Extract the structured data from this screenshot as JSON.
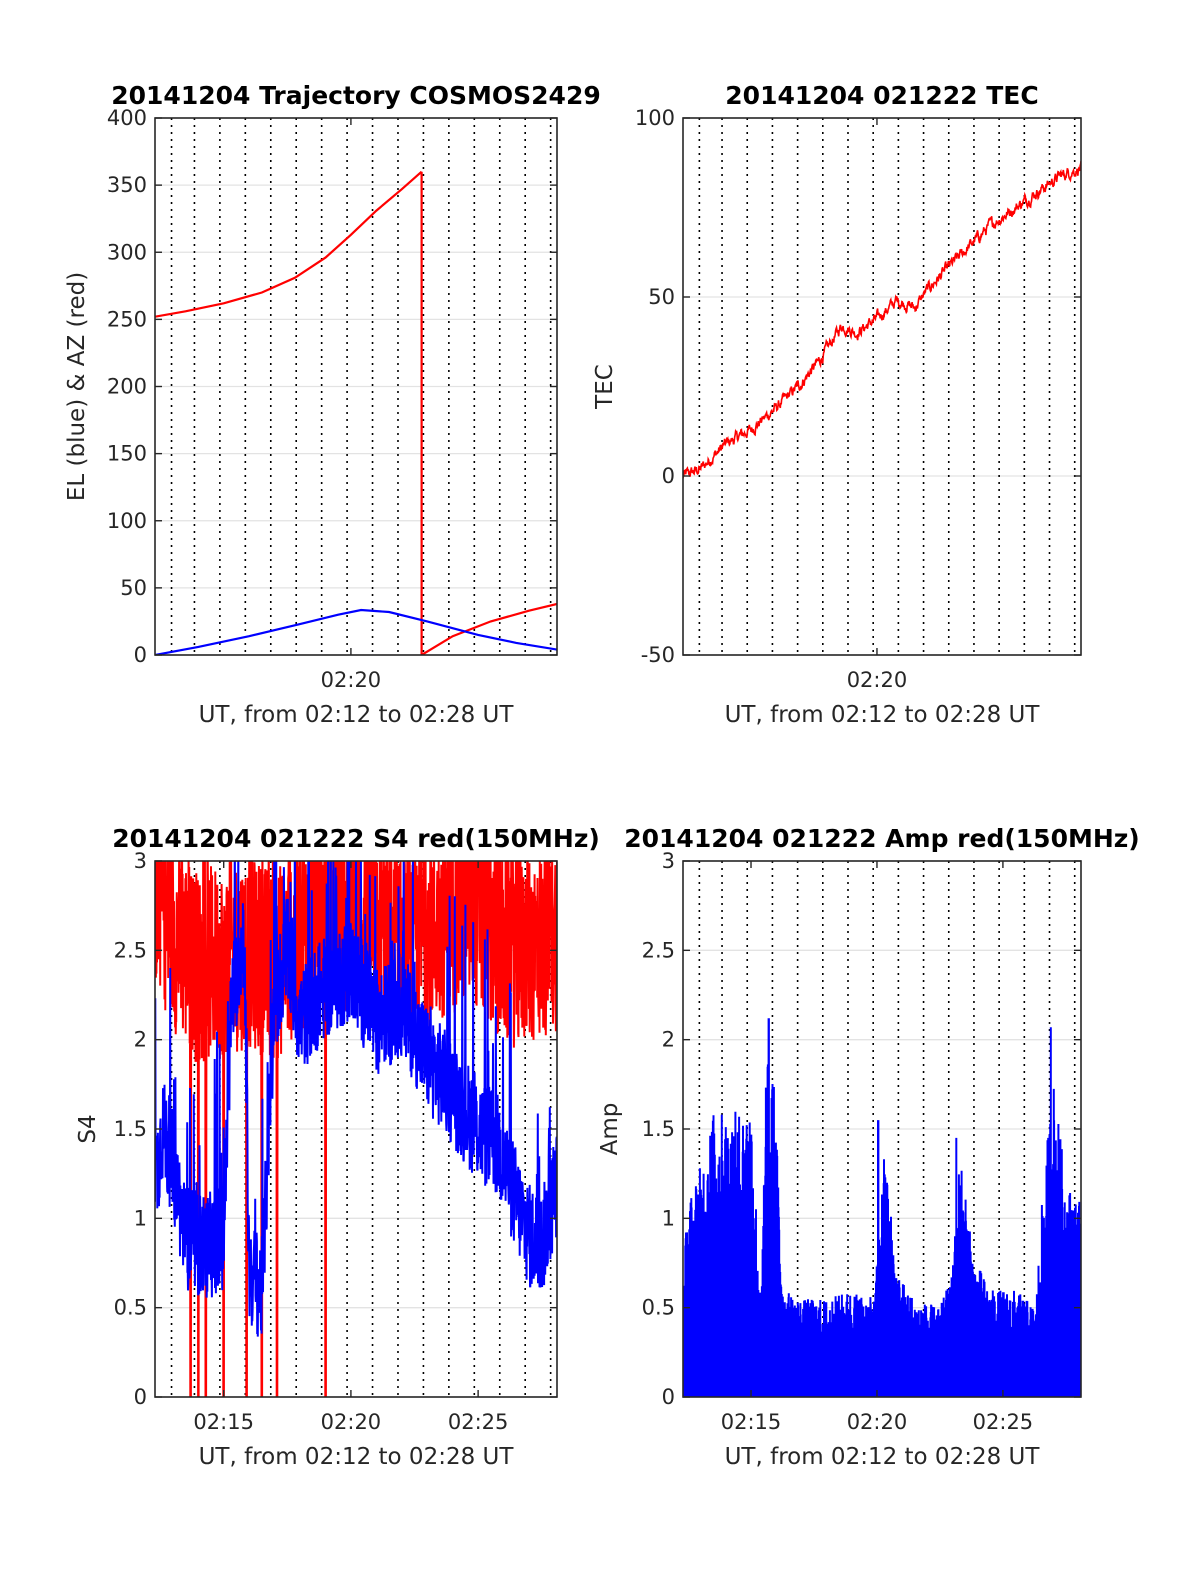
{
  "chart_data": [
    {
      "type": "line",
      "title": "20141204 Trajectory COSMOS2429",
      "xlabel": "UT, from 02:12 to 02:28 UT",
      "ylabel": "EL (blue) & AZ (red)",
      "xlim": [
        12.3,
        28.1
      ],
      "ylim": [
        0,
        400
      ],
      "yticks": [
        "0",
        "50",
        "100",
        "150",
        "200",
        "250",
        "300",
        "350",
        "400"
      ],
      "xticks": [
        {
          "value": 20,
          "label": "02:20"
        }
      ],
      "grid": true,
      "series": [
        {
          "name": "AZ",
          "color": "#ff0000",
          "segments": [
            {
              "x": [
                12.3,
                13.5,
                15.0,
                16.5,
                17.8,
                19.0,
                20.0,
                21.0,
                22.0,
                22.78
              ],
              "y": [
                252,
                256,
                262,
                270,
                281,
                296,
                313,
                331,
                347,
                360
              ]
            },
            {
              "x": [
                22.78,
                22.78
              ],
              "y": [
                360,
                0
              ]
            },
            {
              "x": [
                22.78,
                24.0,
                25.5,
                27.0,
                28.1
              ],
              "y": [
                0,
                14,
                25,
                33,
                38
              ]
            }
          ]
        },
        {
          "name": "EL",
          "color": "#0000ff",
          "segments": [
            {
              "x": [
                12.3,
                14.0,
                16.0,
                18.0,
                19.5,
                20.4,
                21.5,
                23.0,
                25.0,
                26.5,
                28.1
              ],
              "y": [
                0,
                6,
                14,
                23,
                30,
                33.5,
                32,
                25,
                15,
                9,
                4
              ]
            }
          ]
        }
      ]
    },
    {
      "type": "line",
      "title": "20141204 021222 TEC",
      "xlabel": "UT, from 02:12 to 02:28 UT",
      "ylabel": "TEC",
      "xlim": [
        12.3,
        28.1
      ],
      "ylim": [
        -50,
        100
      ],
      "yticks": [
        "-50",
        "0",
        "50",
        "100"
      ],
      "xticks": [
        {
          "value": 20,
          "label": "02:20"
        }
      ],
      "grid": true,
      "noise": 1.2,
      "series": [
        {
          "name": "TEC",
          "color": "#ff0000",
          "x": [
            12.3,
            13.0,
            14.0,
            15.0,
            16.0,
            17.0,
            17.8,
            18.6,
            19.2,
            20.0,
            20.8,
            21.5,
            22.0,
            22.8,
            23.5,
            24.5,
            25.5,
            26.5,
            27.3,
            28.1
          ],
          "y": [
            0,
            2,
            9,
            13,
            19,
            26,
            33,
            42,
            40,
            44,
            49,
            47,
            52,
            58,
            63,
            70,
            75,
            80,
            84,
            86
          ]
        }
      ]
    },
    {
      "type": "line",
      "title": "20141204 021222 S4 red(150MHz)",
      "xlabel": "UT, from 02:12 to 02:28 UT",
      "ylabel": "S4",
      "xlim": [
        12.3,
        28.1
      ],
      "ylim": [
        0,
        3
      ],
      "yticks": [
        "0",
        "0.5",
        "1",
        "1.5",
        "2",
        "2.5",
        "3"
      ],
      "xticks": [
        {
          "value": 15,
          "label": "02:15"
        },
        {
          "value": 20,
          "label": "02:20"
        },
        {
          "value": 25,
          "label": "02:25"
        }
      ],
      "grid": true,
      "series": [
        {
          "name": "S4 red",
          "color": "#ff0000",
          "x": [
            12.3,
            13.0,
            14.0,
            15.0,
            16.0,
            17.0,
            18.0,
            19.0,
            20.0,
            21.0,
            22.0,
            23.0,
            24.0,
            25.0,
            26.0,
            27.0,
            28.1
          ],
          "y": [
            2.85,
            2.6,
            2.4,
            2.45,
            2.5,
            2.4,
            2.6,
            2.7,
            2.7,
            2.6,
            2.5,
            2.6,
            2.7,
            2.7,
            2.5,
            2.5,
            2.6
          ],
          "spread": 0.55,
          "dropouts": [
            13.7,
            14.0,
            14.3,
            15.0,
            15.9,
            16.5,
            17.1,
            19.0
          ]
        },
        {
          "name": "S4 blue",
          "color": "#0000ff",
          "x": [
            12.3,
            12.6,
            13.0,
            13.5,
            14.0,
            14.5,
            15.0,
            15.3,
            15.8,
            16.0,
            16.5,
            17.0,
            17.5,
            18.0,
            19.0,
            20.0,
            21.0,
            22.0,
            23.0,
            24.0,
            25.0,
            25.8,
            26.5,
            27.0,
            27.5,
            28.1
          ],
          "y": [
            1.2,
            1.5,
            1.3,
            0.9,
            0.85,
            0.85,
            0.9,
            2.2,
            2.6,
            0.7,
            0.6,
            2.2,
            2.5,
            2.1,
            2.3,
            2.4,
            2.1,
            2.2,
            1.9,
            1.7,
            1.5,
            1.4,
            1.1,
            0.9,
            0.85,
            1.2
          ],
          "spread": 0.3
        }
      ]
    },
    {
      "type": "bar",
      "title": "20141204 021222 Amp red(150MHz)",
      "xlabel": "UT, from 02:12 to 02:28 UT",
      "ylabel": "Amp",
      "xlim": [
        12.3,
        28.1
      ],
      "ylim": [
        0,
        3
      ],
      "yticks": [
        "0",
        "0.5",
        "1",
        "1.5",
        "2",
        "2.5",
        "3"
      ],
      "xticks": [
        {
          "value": 15,
          "label": "02:15"
        },
        {
          "value": 20,
          "label": "02:20"
        },
        {
          "value": 25,
          "label": "02:25"
        }
      ],
      "grid": true,
      "series": [
        {
          "name": "Amp",
          "color": "#0000ff",
          "envelope_x": [
            12.3,
            12.5,
            13.0,
            13.5,
            14.0,
            14.5,
            15.0,
            15.4,
            15.6,
            15.9,
            16.3,
            17.0,
            18.0,
            19.0,
            19.9,
            20.3,
            20.8,
            21.5,
            22.5,
            23.0,
            23.3,
            23.8,
            24.5,
            25.5,
            26.3,
            26.6,
            27.0,
            27.5,
            28.1
          ],
          "envelope_y": [
            0.7,
            1.1,
            1.3,
            1.6,
            1.6,
            1.6,
            1.7,
            0.5,
            1.9,
            1.8,
            0.6,
            0.55,
            0.55,
            0.6,
            0.55,
            1.4,
            0.7,
            0.55,
            0.5,
            0.7,
            1.4,
            0.8,
            0.6,
            0.6,
            0.5,
            1.2,
            1.8,
            1.2,
            1.1
          ],
          "peaks": [
            {
              "x": 15.7,
              "y": 2.12
            },
            {
              "x": 26.9,
              "y": 2.07
            },
            {
              "x": 20.05,
              "y": 1.55
            },
            {
              "x": 23.15,
              "y": 1.45
            }
          ]
        }
      ]
    }
  ]
}
